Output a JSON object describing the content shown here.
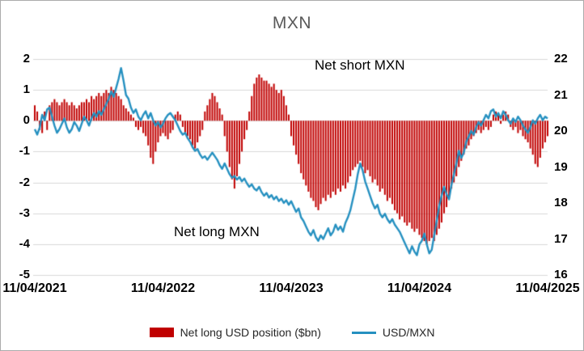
{
  "chart_data": {
    "type": "combo",
    "title": "MXN",
    "x_start": "11/04/2021",
    "x_interval": "weekly",
    "x_tick_labels": [
      "11/04/2021",
      "11/04/2022",
      "11/04/2023",
      "11/04/2024",
      "11/04/2025"
    ],
    "left_axis": {
      "min": -5,
      "max": 2,
      "ticks": [
        2,
        1,
        0,
        -1,
        -2,
        -3,
        -4,
        -5
      ]
    },
    "right_axis": {
      "min": 16,
      "max": 22,
      "ticks": [
        22,
        21,
        20,
        19,
        18,
        17,
        16
      ]
    },
    "grid": true,
    "legend_position": "bottom",
    "annotations": [
      {
        "text": "Net short MXN"
      },
      {
        "text": "Net long MXN"
      }
    ],
    "legend": [
      {
        "label": "Net long USD position ($bn)",
        "type": "bar",
        "color": "#C00000"
      },
      {
        "label": "USD/MXN",
        "type": "line",
        "color": "#2590C0"
      }
    ],
    "series": [
      {
        "name": "Net long USD position ($bn)",
        "type": "bar",
        "axis": "left",
        "color": "#C00000",
        "values": [
          0.5,
          0.3,
          -0.3,
          -0.4,
          0.3,
          -0.3,
          0.5,
          0.6,
          0.7,
          0.6,
          0.5,
          0.6,
          0.7,
          0.6,
          0.5,
          0.6,
          0.5,
          0.4,
          0.5,
          0.6,
          0.6,
          0.7,
          0.6,
          0.8,
          0.7,
          0.8,
          0.9,
          0.8,
          0.9,
          1.0,
          0.9,
          1.1,
          1.0,
          0.9,
          0.8,
          0.7,
          0.5,
          0.4,
          0.3,
          0.2,
          0.1,
          -0.2,
          -0.3,
          -0.2,
          -0.4,
          -0.5,
          -0.8,
          -1.2,
          -1.4,
          -1.0,
          -0.7,
          -0.5,
          -0.4,
          -0.5,
          -0.6,
          -0.4,
          -0.3,
          0.2,
          0.3,
          0.2,
          -0.2,
          -0.4,
          -0.5,
          -0.6,
          -0.8,
          -0.9,
          -0.7,
          -0.5,
          -0.3,
          0.3,
          0.5,
          0.7,
          0.9,
          0.8,
          0.6,
          0.4,
          0.2,
          -0.5,
          -1.0,
          -1.5,
          -1.9,
          -2.2,
          -1.8,
          -1.4,
          -1.0,
          -0.6,
          -0.3,
          0.3,
          0.8,
          1.2,
          1.4,
          1.5,
          1.4,
          1.3,
          1.3,
          1.2,
          1.1,
          1.2,
          1.0,
          0.9,
          1.0,
          0.8,
          0.5,
          0.2,
          -0.5,
          -0.8,
          -1.1,
          -1.4,
          -1.7,
          -1.9,
          -2.1,
          -2.3,
          -2.5,
          -2.6,
          -2.8,
          -2.9,
          -2.7,
          -2.5,
          -2.6,
          -2.4,
          -2.5,
          -2.3,
          -2.4,
          -2.2,
          -2.3,
          -2.1,
          -2.2,
          -2.0,
          -1.8,
          -1.6,
          -1.5,
          -1.4,
          -1.3,
          -1.5,
          -1.7,
          -1.6,
          -1.8,
          -2.0,
          -1.9,
          -2.1,
          -2.3,
          -2.2,
          -2.4,
          -2.6,
          -2.5,
          -2.7,
          -2.9,
          -3.0,
          -3.2,
          -3.1,
          -3.3,
          -3.4,
          -3.3,
          -3.5,
          -3.6,
          -3.5,
          -3.7,
          -3.8,
          -3.9,
          -4.0,
          -3.9,
          -3.8,
          -3.9,
          -3.7,
          -3.5,
          -3.3,
          -3.0,
          -2.8,
          -2.5,
          -2.2,
          -2.0,
          -1.8,
          -1.5,
          -1.3,
          -1.1,
          -0.9,
          -0.8,
          -0.6,
          -0.5,
          -0.4,
          -0.3,
          -0.4,
          -0.3,
          -0.2,
          -0.3,
          -0.2,
          0.2,
          0.3,
          0.2,
          -0.1,
          0.2,
          0.3,
          0.2,
          -0.2,
          -0.3,
          -0.2,
          -0.4,
          -0.3,
          -0.5,
          -0.6,
          -0.7,
          -0.9,
          -1.1,
          -1.4,
          -1.5,
          -1.2,
          -0.9,
          -0.7,
          -0.5
        ]
      },
      {
        "name": "USD/MXN",
        "type": "line",
        "axis": "right",
        "color": "#2590C0",
        "values": [
          20.05,
          19.9,
          20.1,
          20.45,
          20.3,
          20.6,
          20.65,
          20.4,
          20.15,
          19.95,
          20.05,
          20.2,
          20.35,
          20.1,
          19.95,
          20.05,
          20.25,
          20.15,
          20.0,
          20.2,
          20.4,
          20.3,
          20.15,
          20.35,
          20.5,
          20.4,
          20.55,
          20.45,
          20.6,
          20.75,
          20.9,
          21.1,
          20.95,
          21.2,
          21.45,
          21.75,
          21.4,
          21.0,
          20.9,
          20.65,
          20.5,
          20.6,
          20.4,
          20.3,
          20.45,
          20.55,
          20.35,
          20.5,
          20.3,
          20.15,
          20.25,
          20.1,
          20.2,
          20.35,
          20.45,
          20.5,
          20.4,
          20.3,
          20.15,
          20.0,
          19.9,
          19.95,
          19.8,
          19.7,
          19.55,
          19.45,
          19.5,
          19.35,
          19.25,
          19.3,
          19.2,
          19.3,
          19.4,
          19.3,
          19.2,
          19.05,
          18.95,
          19.1,
          18.95,
          18.8,
          18.7,
          18.75,
          18.65,
          18.72,
          18.6,
          18.68,
          18.55,
          18.45,
          18.52,
          18.4,
          18.35,
          18.45,
          18.3,
          18.2,
          18.28,
          18.15,
          18.22,
          18.1,
          18.18,
          18.05,
          18.12,
          18.0,
          18.08,
          17.95,
          18.05,
          17.9,
          17.75,
          17.85,
          17.6,
          17.5,
          17.35,
          17.2,
          17.1,
          17.25,
          17.05,
          16.95,
          17.1,
          17.0,
          17.15,
          17.3,
          17.1,
          17.2,
          17.4,
          17.25,
          17.35,
          17.2,
          17.45,
          17.6,
          17.8,
          18.1,
          18.4,
          18.8,
          19.1,
          18.9,
          18.6,
          18.4,
          18.2,
          18.0,
          17.85,
          17.95,
          17.7,
          17.6,
          17.7,
          17.55,
          17.45,
          17.55,
          17.4,
          17.3,
          17.2,
          17.05,
          16.9,
          16.75,
          16.6,
          16.8,
          16.65,
          16.55,
          16.85,
          16.95,
          17.15,
          16.85,
          16.6,
          16.7,
          17.1,
          17.5,
          17.9,
          18.2,
          18.45,
          18.25,
          18.1,
          18.5,
          18.8,
          19.1,
          19.45,
          19.25,
          19.4,
          19.7,
          19.85,
          20.0,
          19.9,
          20.1,
          20.25,
          20.15,
          20.3,
          20.45,
          20.35,
          20.55,
          20.6,
          20.4,
          20.5,
          20.35,
          20.55,
          20.45,
          20.3,
          20.2,
          20.35,
          20.25,
          20.4,
          20.3,
          20.15,
          20.05,
          19.95,
          20.1,
          20.3,
          20.2,
          20.35,
          20.45,
          20.3,
          20.4,
          20.35
        ]
      }
    ]
  },
  "colors": {
    "title": "#595959",
    "grid": "#d9d9d9",
    "axis_text": "#000000",
    "frame_border": "#ababab",
    "background": "#ffffff"
  }
}
